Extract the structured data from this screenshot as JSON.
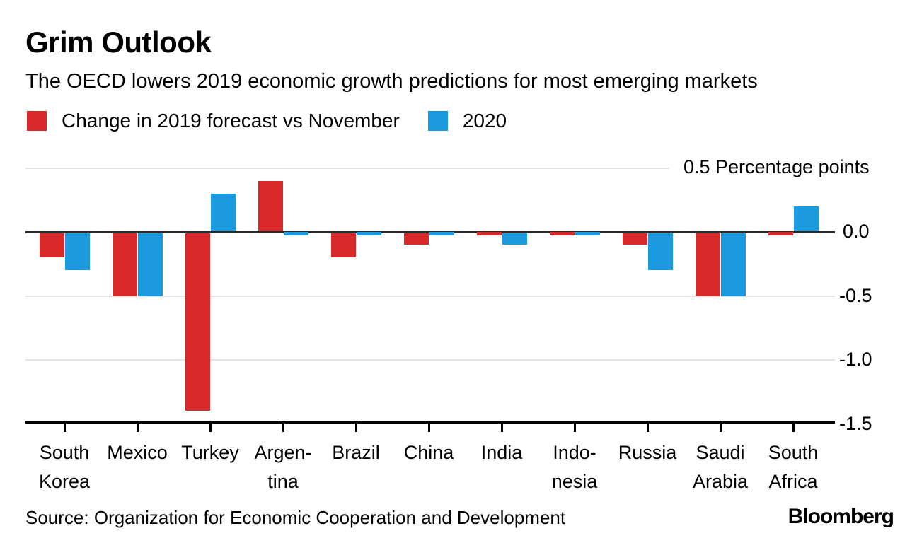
{
  "header": {
    "title": "Grim Outlook",
    "subtitle": "The OECD lowers 2019 economic growth predictions for most emerging markets"
  },
  "legend": [
    {
      "label": "Change in 2019 forecast vs November",
      "color": "#d7282a"
    },
    {
      "label": "2020",
      "color": "#1b9ae0"
    }
  ],
  "chart_data": {
    "type": "bar",
    "title": "Grim Outlook",
    "subtitle": "The OECD lowers 2019 economic growth predictions for most emerging markets",
    "categories": [
      "South Korea",
      "Mexico",
      "Turkey",
      "Argentina",
      "Brazil",
      "China",
      "India",
      "Indonesia",
      "Russia",
      "Saudi Arabia",
      "South Africa"
    ],
    "category_label_lines": [
      [
        "South",
        "Korea"
      ],
      [
        "Mexico"
      ],
      [
        "Turkey"
      ],
      [
        "Argen-",
        "tina"
      ],
      [
        "Brazil"
      ],
      [
        "China"
      ],
      [
        "India"
      ],
      [
        "Indo-",
        "nesia"
      ],
      [
        "Russia"
      ],
      [
        "Saudi",
        "Arabia"
      ],
      [
        "South",
        "Africa"
      ]
    ],
    "series": [
      {
        "name": "Change in 2019 forecast vs November",
        "color": "#d7282a",
        "values": [
          -0.2,
          -0.5,
          -1.4,
          0.4,
          -0.2,
          -0.1,
          0.0,
          0.0,
          -0.1,
          -0.5,
          0.0
        ]
      },
      {
        "name": "2020",
        "color": "#1b9ae0",
        "values": [
          -0.3,
          -0.5,
          0.3,
          0.0,
          0.0,
          0.0,
          -0.1,
          0.0,
          -0.3,
          -0.5,
          0.2
        ]
      }
    ],
    "ylabel": "Percentage points",
    "yticks": [
      0.5,
      0.0,
      -0.5,
      -1.0,
      -1.5
    ],
    "ytick_labels": [
      "0.5 Percentage points",
      "0.0",
      "-0.5",
      "-1.0",
      "-1.5"
    ],
    "ylim": [
      -1.5,
      0.5
    ],
    "grid": true,
    "legend_position": "top-left"
  },
  "footer": {
    "source": "Source: Organization for Economic Cooperation and Development",
    "brand": "Bloomberg"
  }
}
